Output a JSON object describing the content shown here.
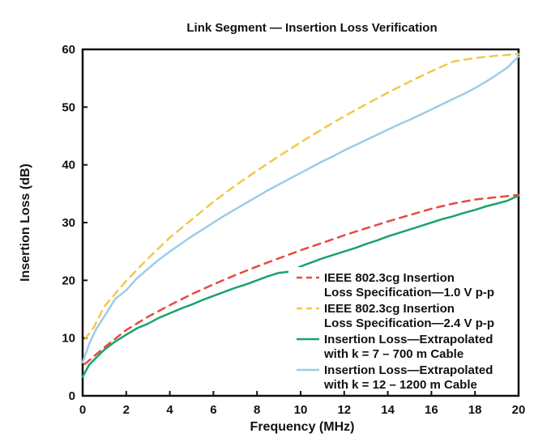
{
  "chart_data": {
    "type": "line",
    "title": "Link Segment — Insertion Loss Verification",
    "xlabel": "Frequency (MHz)",
    "ylabel": "Insertion Loss (dB)",
    "xlim": [
      0,
      20
    ],
    "ylim": [
      0,
      60
    ],
    "xticks": [
      0,
      2,
      4,
      6,
      8,
      10,
      12,
      14,
      16,
      18,
      20
    ],
    "yticks": [
      0,
      10,
      20,
      30,
      40,
      50,
      60
    ],
    "grid": false,
    "legend_position": "bottom-right",
    "series": [
      {
        "name_lines": [
          "IEEE 802.3cg Insertion",
          "Loss Specification—1.0 V p-p"
        ],
        "color": "#e84a3c",
        "style": "dashed",
        "x": [
          0.1,
          0.5,
          1,
          2,
          3,
          4,
          5,
          6,
          7,
          8,
          9,
          10,
          11,
          12,
          13,
          14,
          15,
          16,
          17,
          18,
          19,
          20
        ],
        "y": [
          5.5,
          6.8,
          8.4,
          11.4,
          13.7,
          15.7,
          17.6,
          19.3,
          20.9,
          22.4,
          23.8,
          25.2,
          26.5,
          27.8,
          29.0,
          30.2,
          31.3,
          32.4,
          33.3,
          34.0,
          34.4,
          34.8
        ]
      },
      {
        "name_lines": [
          "IEEE 802.3cg Insertion",
          "Loss Specification—2.4 V p-p"
        ],
        "color": "#f2c84b",
        "style": "dashed",
        "x": [
          0.1,
          0.5,
          1,
          2,
          3,
          4,
          5,
          6,
          7,
          8,
          9,
          10,
          11,
          12,
          13,
          14,
          15,
          16,
          17,
          18,
          19,
          20
        ],
        "y": [
          9.8,
          11.8,
          15.5,
          19.9,
          23.8,
          27.4,
          30.5,
          33.6,
          36.4,
          39.0,
          41.5,
          43.9,
          46.2,
          48.4,
          50.5,
          52.5,
          54.4,
          56.2,
          57.9,
          58.5,
          58.9,
          59.2
        ]
      },
      {
        "name_lines": [
          "Insertion Loss—Extrapolated",
          "with k = 7 – 700 m Cable"
        ],
        "color": "#1aa36a",
        "style": "solid",
        "x": [
          0.0,
          0.3,
          0.6,
          1.0,
          1.5,
          2.0,
          2.5,
          3.0,
          3.5,
          4.0,
          4.5,
          5.0,
          5.5,
          6.0,
          6.5,
          7.0,
          7.5,
          8.0,
          8.5,
          9.0,
          9.5,
          10.0,
          10.5,
          11.0,
          11.5,
          12.0,
          12.5,
          13.0,
          13.5,
          14.0,
          14.5,
          15.0,
          15.5,
          16.0,
          16.5,
          17.0,
          17.5,
          18.0,
          18.5,
          19.0,
          19.5,
          20.0
        ],
        "y": [
          3.3,
          5.4,
          6.5,
          8.0,
          9.4,
          10.6,
          11.7,
          12.5,
          13.5,
          14.3,
          15.1,
          15.8,
          16.6,
          17.3,
          18.0,
          18.7,
          19.3,
          20.0,
          20.7,
          21.3,
          21.5,
          22.4,
          23.1,
          23.8,
          24.4,
          25.0,
          25.6,
          26.3,
          26.9,
          27.6,
          28.2,
          28.8,
          29.4,
          30.0,
          30.6,
          31.1,
          31.7,
          32.2,
          32.8,
          33.3,
          33.8,
          34.7
        ]
      },
      {
        "name_lines": [
          "Insertion Loss—Extrapolated",
          "with k = 12 – 1200 m Cable"
        ],
        "color": "#9ccde6",
        "style": "solid",
        "x": [
          0.0,
          0.3,
          0.6,
          1.0,
          1.5,
          2.0,
          2.5,
          3.0,
          3.5,
          4.0,
          4.5,
          5.0,
          5.5,
          6.0,
          6.5,
          7.0,
          7.5,
          8.0,
          8.5,
          9.0,
          9.5,
          10.0,
          10.5,
          11.0,
          11.5,
          12.0,
          12.5,
          13.0,
          13.5,
          14.0,
          14.5,
          15.0,
          15.5,
          16.0,
          16.5,
          17.0,
          17.5,
          18.0,
          18.5,
          19.0,
          19.5,
          20.0
        ],
        "y": [
          5.8,
          9.0,
          11.4,
          13.8,
          16.8,
          18.3,
          20.4,
          22.0,
          23.6,
          25.0,
          26.3,
          27.6,
          28.8,
          30.0,
          31.2,
          32.3,
          33.4,
          34.5,
          35.6,
          36.6,
          37.6,
          38.6,
          39.6,
          40.6,
          41.5,
          42.5,
          43.4,
          44.3,
          45.2,
          46.1,
          47.0,
          47.8,
          48.7,
          49.6,
          50.5,
          51.4,
          52.3,
          53.3,
          54.4,
          55.6,
          56.9,
          58.8
        ]
      }
    ]
  }
}
